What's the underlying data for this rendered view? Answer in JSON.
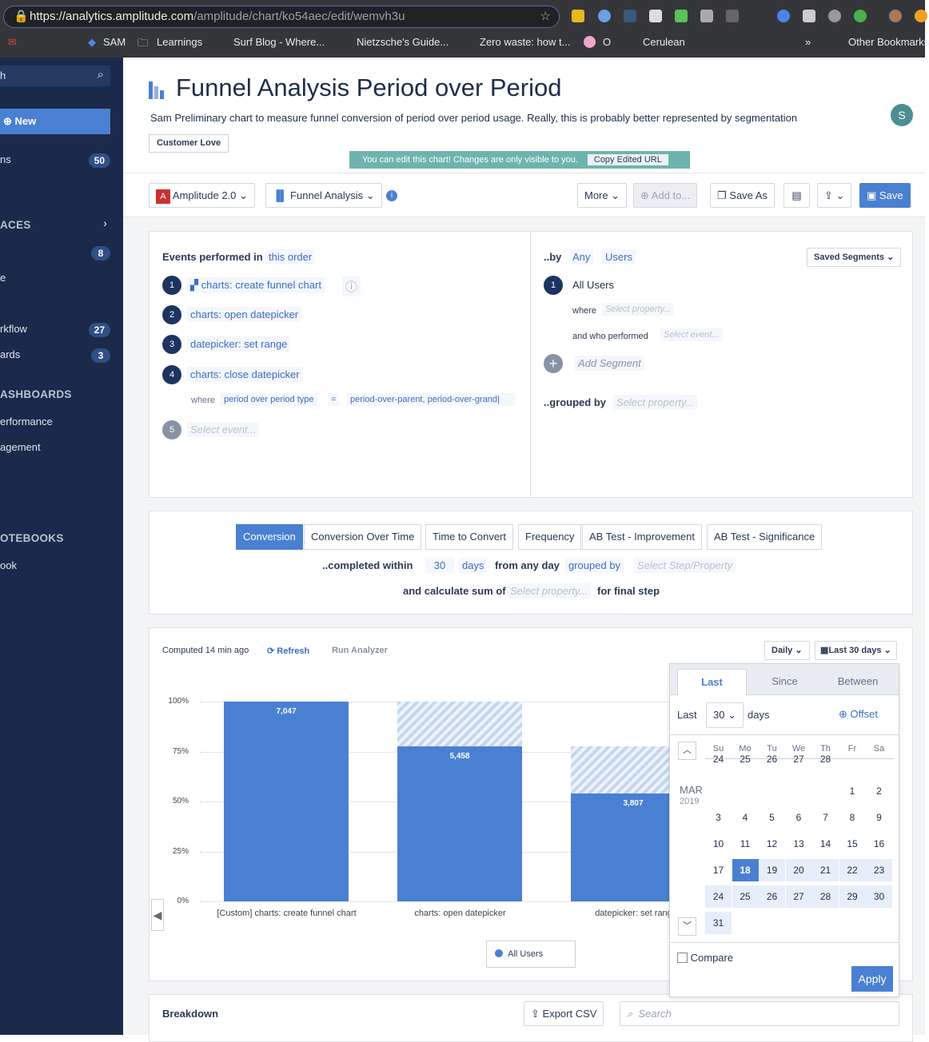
{
  "browser": {
    "url_host": "https://analytics.amplitude.com",
    "url_path": "/amplitude/chart/ko54aec/edit/wemvh3u",
    "bookmarks": [
      "SAM",
      "Learnings",
      "Surf Blog - Where...",
      "Nietzsche's Guide...",
      "Zero waste: how t...",
      "O",
      "Cerulean",
      "»",
      "Other Bookmarks"
    ]
  },
  "sidebar": {
    "search": "h",
    "new_label": "New",
    "items": [
      {
        "label": "ns",
        "badge": "50"
      },
      {
        "label": "ACES",
        "header": true
      },
      {
        "label": "",
        "badge": "8"
      },
      {
        "label": "e"
      },
      {
        "label": "rkflow",
        "badge": "27"
      },
      {
        "label": "ards",
        "badge": "3"
      },
      {
        "label": "ASHBOARDS",
        "header": true
      },
      {
        "label": "erformance"
      },
      {
        "label": "agement"
      },
      {
        "label": "OTEBOOKS",
        "header": true
      },
      {
        "label": "ook"
      }
    ]
  },
  "header": {
    "title": "Funnel Analysis Period over Period",
    "description": "Sam Preliminary chart to measure funnel conversion of period over period usage. Really, this is probably better represented by segmentation",
    "tag": "Customer Love",
    "notice": "You can edit this chart! Changes are only visible to you.",
    "copy_url": "Copy Edited URL",
    "avatar": "S"
  },
  "toolbar": {
    "project_icon": "A",
    "project": "Amplitude 2.0",
    "chart_type": "Funnel Analysis",
    "more": "More",
    "add_to": "Add to...",
    "save_as": "Save As",
    "save": "Save"
  },
  "events": {
    "label": "Events performed in",
    "order": "this order",
    "steps": [
      {
        "n": "1",
        "name": "charts: create funnel chart"
      },
      {
        "n": "2",
        "name": "charts: open datepicker"
      },
      {
        "n": "3",
        "name": "datepicker: set range"
      },
      {
        "n": "4",
        "name": "charts: close datepicker"
      }
    ],
    "where": "where",
    "prop": "period over period type",
    "op": "=",
    "value": "period-over-parent, period-over-grand|",
    "next_n": "5",
    "next_placeholder": "Select event..."
  },
  "segments": {
    "by": "..by",
    "any": "Any",
    "users": "Users",
    "saved": "Saved Segments",
    "seg_n": "1",
    "seg_name": "All Users",
    "where": "where",
    "where_ph": "Select property...",
    "who": "and who performed",
    "who_ph": "Select event...",
    "add": "Add Segment",
    "grouped": "..grouped by",
    "grouped_ph": "Select property..."
  },
  "metric": {
    "tabs": [
      "Conversion",
      "Conversion Over Time",
      "Time to Convert",
      "Frequency",
      "AB Test - Improvement",
      "AB Test - Significance"
    ],
    "active": 0,
    "completed": "..completed within",
    "days_n": "30",
    "days": "days",
    "from": "from any day",
    "grouped": "grouped by",
    "grouped_ph": "Select Step/Property",
    "calc": "and calculate sum of",
    "calc_ph": "Select property...",
    "final": "for final step"
  },
  "results": {
    "computed": "Computed 14 min ago",
    "refresh": "Refresh",
    "analyzer": "Run Analyzer",
    "interval": "Daily",
    "range": "Last 30 days",
    "legend": "All Users"
  },
  "chart_data": {
    "type": "bar",
    "categories": [
      "[Custom] charts: create funnel chart",
      "charts: open datepicker",
      "datepicker: set rang"
    ],
    "values": [
      7047,
      5458,
      3807
    ],
    "labels": [
      "7,047",
      "5,458",
      "3,807"
    ],
    "percent": [
      100,
      77.5,
      54
    ],
    "yticks": [
      "100%",
      "75%",
      "50%",
      "25%",
      "0%"
    ],
    "ylim": [
      0,
      100
    ],
    "grid": true,
    "series": [
      {
        "name": "All Users",
        "color": "#4a80d2"
      }
    ]
  },
  "datepicker": {
    "tabs": [
      "Last",
      "Since",
      "Between"
    ],
    "last": "Last",
    "n": "30",
    "days": "days",
    "offset": "Offset",
    "dow": [
      "Su",
      "Mo",
      "Tu",
      "We",
      "Th",
      "Fr",
      "Sa"
    ],
    "month": "MAR",
    "year": "2019",
    "prev_row": [
      "24",
      "25",
      "26",
      "27",
      "28"
    ],
    "selected": "18",
    "compare": "Compare",
    "apply": "Apply"
  },
  "breakdown": {
    "title": "Breakdown",
    "export": "Export CSV",
    "search_ph": "Search"
  },
  "colors": {
    "accent": "#4a80d2",
    "sidebar": "#1b2a4a",
    "notice": "#6fb3ad"
  }
}
